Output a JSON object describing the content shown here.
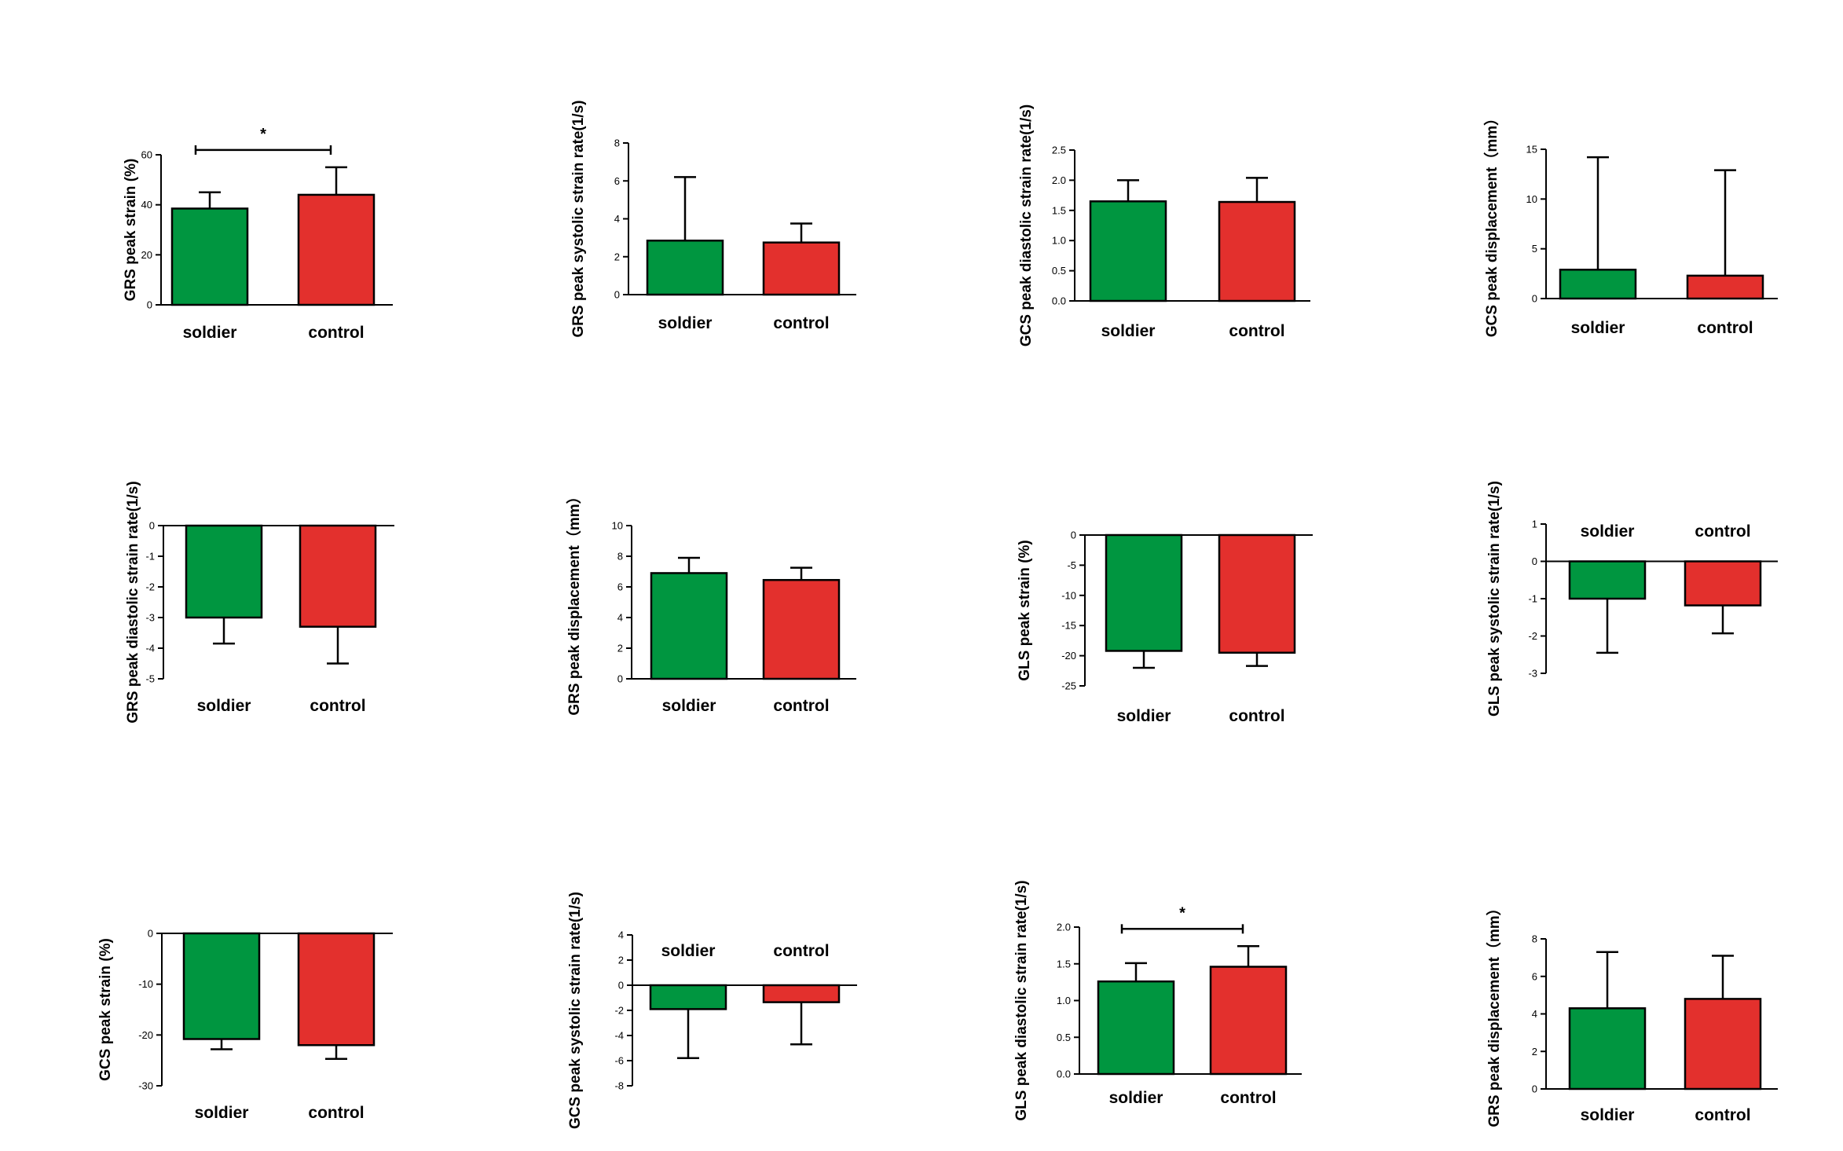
{
  "colors": {
    "soldier": "#009640",
    "control": "#e3302d"
  },
  "chart_data": [
    {
      "type": "bar",
      "title": "",
      "ylabel": "GRS peak strain (%)",
      "categories": [
        "soldier",
        "control"
      ],
      "values": [
        38.5,
        44
      ],
      "errors": [
        6.5,
        11
      ],
      "ylim": [
        0,
        60
      ],
      "yticks": [
        0,
        20,
        40,
        60
      ],
      "ytick_labels": [
        "0",
        "20",
        "40",
        "60"
      ],
      "significance": "*"
    },
    {
      "type": "bar",
      "title": "",
      "ylabel": "GRS peak systolic strain rate(1/s)",
      "categories": [
        "soldier",
        "control"
      ],
      "values": [
        2.85,
        2.75
      ],
      "errors": [
        3.35,
        1.0
      ],
      "ylim": [
        0,
        8
      ],
      "yticks": [
        0,
        2,
        4,
        6,
        8
      ],
      "ytick_labels": [
        "0",
        "2",
        "4",
        "6",
        "8"
      ],
      "significance": ""
    },
    {
      "type": "bar",
      "title": "",
      "ylabel": "GCS peak diastolic strain rate(1/s)",
      "categories": [
        "soldier",
        "control"
      ],
      "values": [
        1.65,
        1.64
      ],
      "errors": [
        0.35,
        0.4
      ],
      "ylim": [
        0,
        2.5
      ],
      "yticks": [
        0,
        0.5,
        1.0,
        1.5,
        2.0,
        2.5
      ],
      "ytick_labels": [
        "0.0",
        "0.5",
        "1.0",
        "1.5",
        "2.0",
        "2.5"
      ],
      "significance": ""
    },
    {
      "type": "bar",
      "title": "",
      "ylabel": "GCS peak displacement（mm）",
      "categories": [
        "soldier",
        "control"
      ],
      "values": [
        2.9,
        2.3
      ],
      "errors": [
        11.3,
        10.6
      ],
      "ylim": [
        0,
        15
      ],
      "yticks": [
        0,
        5,
        10,
        15
      ],
      "ytick_labels": [
        "0",
        "5",
        "10",
        "15"
      ],
      "significance": ""
    },
    {
      "type": "bar",
      "title": "",
      "ylabel": "GRS peak diastolic strain rate(1/s)",
      "categories": [
        "soldier",
        "control"
      ],
      "values": [
        -3.0,
        -3.3
      ],
      "errors": [
        0.85,
        1.2
      ],
      "ylim": [
        -5,
        0
      ],
      "yticks": [
        0,
        -1,
        -2,
        -3,
        -4,
        -5
      ],
      "ytick_labels": [
        "0",
        "-1",
        "-2",
        "-3",
        "-4",
        "-5"
      ],
      "significance": ""
    },
    {
      "type": "bar",
      "title": "",
      "ylabel": "GRS peak displacement（mm）",
      "categories": [
        "soldier",
        "control"
      ],
      "values": [
        6.9,
        6.45
      ],
      "errors": [
        1.0,
        0.8
      ],
      "ylim": [
        0,
        10
      ],
      "yticks": [
        0,
        2,
        4,
        6,
        8,
        10
      ],
      "ytick_labels": [
        "0",
        "2",
        "4",
        "6",
        "8",
        "10"
      ],
      "significance": ""
    },
    {
      "type": "bar",
      "title": "",
      "ylabel": "GLS peak strain (%)",
      "categories": [
        "soldier",
        "control"
      ],
      "values": [
        -19.2,
        -19.5
      ],
      "errors": [
        2.8,
        2.2
      ],
      "ylim": [
        -25,
        0
      ],
      "yticks": [
        0,
        -5,
        -10,
        -15,
        -20,
        -25
      ],
      "ytick_labels": [
        "0",
        "-5",
        "-10",
        "-15",
        "-20",
        "-25"
      ],
      "significance": ""
    },
    {
      "type": "bar",
      "title": "",
      "ylabel": "GLS peak systolic strain rate(1/s)",
      "categories": [
        "soldier",
        "control"
      ],
      "values": [
        -1.0,
        -1.18
      ],
      "errors": [
        1.45,
        0.75
      ],
      "ylim": [
        -3,
        1
      ],
      "yticks": [
        1,
        0,
        -1,
        -2,
        -3
      ],
      "ytick_labels": [
        "1",
        "0",
        "-1",
        "-2",
        "-3"
      ],
      "significance": ""
    },
    {
      "type": "bar",
      "title": "",
      "ylabel": "GCS peak strain (%)",
      "categories": [
        "soldier",
        "control"
      ],
      "values": [
        -20.8,
        -22.0
      ],
      "errors": [
        2.0,
        2.7
      ],
      "ylim": [
        -30,
        0
      ],
      "yticks": [
        0,
        -10,
        -20,
        -30
      ],
      "ytick_labels": [
        "0",
        "-10",
        "-20",
        "-30"
      ],
      "significance": ""
    },
    {
      "type": "bar",
      "title": "",
      "ylabel": "GCS peak systolic strain rate(1/s)",
      "categories": [
        "soldier",
        "control"
      ],
      "values": [
        -1.9,
        -1.35
      ],
      "errors": [
        3.9,
        3.35
      ],
      "ylim": [
        -8,
        4
      ],
      "yticks": [
        4,
        2,
        0,
        -2,
        -4,
        -6,
        -8
      ],
      "ytick_labels": [
        "4",
        "2",
        "0",
        "-2",
        "-4",
        "-6",
        "-8"
      ],
      "significance": ""
    },
    {
      "type": "bar",
      "title": "",
      "ylabel": "GLS peak diastolic strain rate(1/s)",
      "categories": [
        "soldier",
        "control"
      ],
      "values": [
        1.26,
        1.46
      ],
      "errors": [
        0.25,
        0.28
      ],
      "ylim": [
        0,
        2.0
      ],
      "yticks": [
        0,
        0.5,
        1.0,
        1.5,
        2.0
      ],
      "ytick_labels": [
        "0.0",
        "0.5",
        "1.0",
        "1.5",
        "2.0"
      ],
      "significance": "*"
    },
    {
      "type": "bar",
      "title": "",
      "ylabel": "GRS peak displacement（mm）",
      "categories": [
        "soldier",
        "control"
      ],
      "values": [
        4.3,
        4.8
      ],
      "errors": [
        3.0,
        2.3
      ],
      "ylim": [
        0,
        8
      ],
      "yticks": [
        0,
        2,
        4,
        6,
        8
      ],
      "ytick_labels": [
        "0",
        "2",
        "4",
        "6",
        "8"
      ],
      "significance": ""
    }
  ]
}
